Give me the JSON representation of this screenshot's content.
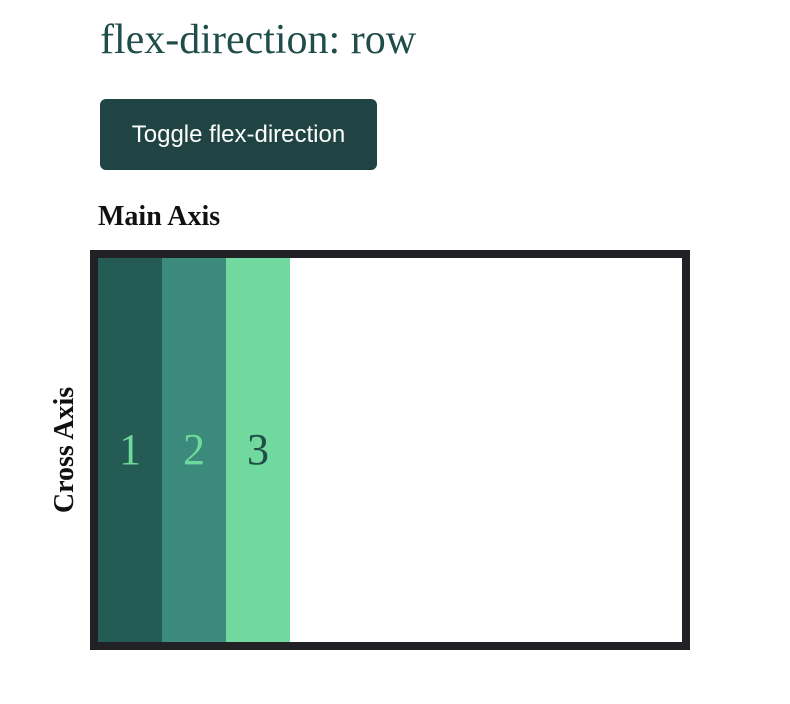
{
  "title": "flex-direction: row",
  "toggle_button": {
    "label": "Toggle flex-direction"
  },
  "axes": {
    "main_label": "Main Axis",
    "cross_label": "Cross Axis"
  },
  "flex_container": {
    "direction": "row",
    "border_color": "#222226",
    "items": [
      {
        "label": "1",
        "bg": "#245b55",
        "color": "#6fd89b"
      },
      {
        "label": "2",
        "bg": "#3b8a7b",
        "color": "#6fd89b"
      },
      {
        "label": "3",
        "bg": "#71d99d",
        "color": "#1f4d4a"
      }
    ]
  },
  "colors": {
    "title": "#1f4d4a",
    "button_bg": "#1f4443",
    "button_text": "#ffffff"
  }
}
